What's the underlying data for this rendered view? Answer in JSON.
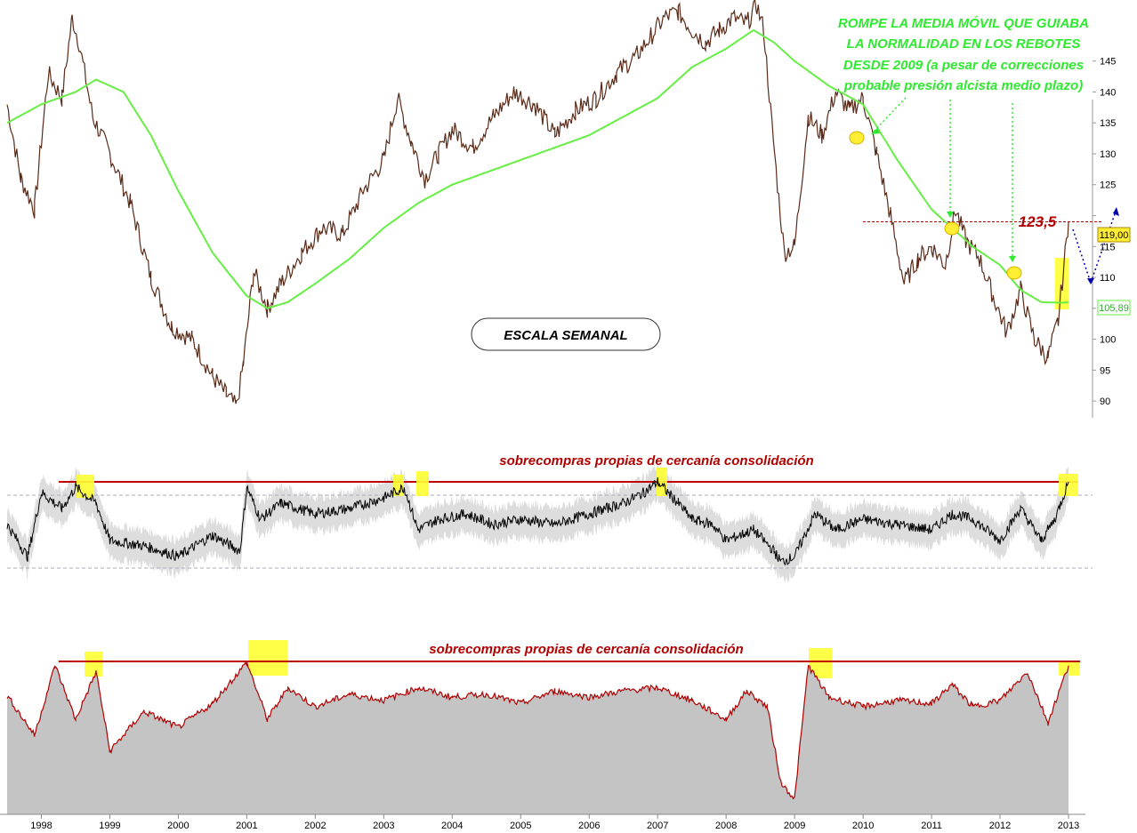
{
  "chart_data": [
    {
      "type": "line",
      "panel": "price",
      "label_box": "ESCALA SEMANAL",
      "annotation_lines": [
        "ROMPE LA MEDIA MÓVIL QUE GUIABA",
        "LA NORMALIDAD EN LOS REBOTES",
        "DESDE 2009 (a pesar de correcciones",
        "probable presión alcista medio plazo)"
      ],
      "level_label": "123,5",
      "last_price_label": "119,00",
      "ma_value_label": "105,89",
      "yticks": [
        90,
        95,
        100,
        105,
        110,
        115,
        120,
        125,
        130,
        135,
        140,
        145
      ],
      "ytick_labels": [
        "90",
        "95",
        "100",
        "",
        "110",
        "115",
        "",
        "125",
        "130",
        "135",
        "140",
        "145"
      ],
      "ylim": [
        88,
        152
      ],
      "resistance_level": 119,
      "series": [
        {
          "color": "#333333",
          "x": [
            1997.5,
            1997.7,
            1997.9,
            1998.1,
            1998.3,
            1998.45,
            1998.55,
            1998.75,
            1999.0,
            1999.3,
            1999.6,
            1999.9,
            2000.2,
            2000.5,
            2000.7,
            2000.85,
            2000.95,
            2001.1,
            2001.3,
            2001.5,
            2001.8,
            2002.1,
            2002.4,
            2002.7,
            2003.0,
            2003.2,
            2003.4,
            2003.6,
            2003.8,
            2004.0,
            2004.3,
            2004.6,
            2004.9,
            2005.2,
            2005.5,
            2005.8,
            2006.1,
            2006.4,
            2006.7,
            2006.9,
            2007.1,
            2007.3,
            2007.5,
            2007.7,
            2007.9,
            2008.1,
            2008.3,
            2008.45,
            2008.55,
            2008.65,
            2008.75,
            2008.85,
            2009.0,
            2009.2,
            2009.4,
            2009.6,
            2009.8,
            2010.0,
            2010.2,
            2010.4,
            2010.6,
            2010.8,
            2011.0,
            2011.2,
            2011.35,
            2011.5,
            2011.7,
            2011.9,
            2012.1,
            2012.3,
            2012.5,
            2012.7,
            2012.85,
            2013.0
          ],
          "values": [
            138,
            126,
            121,
            143,
            139,
            152,
            148,
            136,
            130,
            122,
            110,
            102,
            100,
            94,
            91,
            89,
            96,
            111,
            105,
            109,
            114,
            118,
            117,
            124,
            129,
            139,
            132,
            126,
            130,
            134,
            131,
            136,
            140,
            138,
            133,
            137,
            139,
            143,
            146,
            149,
            152,
            153,
            150,
            148,
            150,
            152,
            151,
            154,
            150,
            137,
            125,
            114,
            115,
            136,
            133,
            140,
            137,
            139,
            130,
            120,
            109,
            113,
            115,
            112,
            121,
            116,
            113,
            107,
            101,
            108,
            100,
            97,
            103,
            119
          ]
        },
        {
          "color": "#66ee44",
          "x": [
            1997.5,
            1998.0,
            1998.5,
            1998.8,
            1999.2,
            1999.6,
            2000.0,
            2000.5,
            2001.0,
            2001.3,
            2001.6,
            2002.0,
            2002.5,
            2003.0,
            2003.5,
            2004.0,
            2004.5,
            2005.0,
            2005.5,
            2006.0,
            2006.5,
            2007.0,
            2007.5,
            2008.0,
            2008.4,
            2008.7,
            2009.0,
            2009.5,
            2010.0,
            2010.5,
            2011.0,
            2011.3,
            2011.6,
            2012.0,
            2012.3,
            2012.6,
            2012.9,
            2013.0
          ],
          "values": [
            135,
            138,
            140,
            142,
            140,
            133,
            124,
            114,
            107,
            105,
            106,
            109,
            113,
            118,
            122,
            125,
            127,
            129,
            131,
            133,
            136,
            139,
            144,
            147,
            150,
            148,
            145,
            141,
            138,
            129,
            121,
            118,
            115,
            112,
            108,
            106,
            105.9,
            106
          ]
        }
      ]
    },
    {
      "type": "line",
      "panel": "oscillator-1",
      "title": "sobrecompras propias de cercanía consolidación",
      "ylim": [
        0,
        100
      ],
      "overbought_level": 88,
      "series": [
        {
          "color": "#000000",
          "x": [
            1997.5,
            1997.8,
            1998.0,
            1998.3,
            1998.5,
            1998.8,
            1999.0,
            1999.5,
            2000.0,
            2000.5,
            2000.9,
            2001.0,
            2001.2,
            2001.5,
            2002.0,
            2002.5,
            2003.0,
            2003.3,
            2003.5,
            2003.8,
            2004.2,
            2004.6,
            2005.0,
            2005.5,
            2006.0,
            2006.5,
            2006.8,
            2007.0,
            2007.3,
            2007.5,
            2007.8,
            2008.0,
            2008.4,
            2008.7,
            2008.8,
            2009.0,
            2009.3,
            2009.6,
            2010.0,
            2010.5,
            2011.0,
            2011.3,
            2011.6,
            2012.0,
            2012.3,
            2012.6,
            2012.8,
            2013.0
          ],
          "values": [
            50,
            20,
            80,
            65,
            85,
            70,
            35,
            30,
            20,
            40,
            25,
            85,
            55,
            70,
            60,
            65,
            75,
            85,
            45,
            55,
            60,
            50,
            55,
            50,
            60,
            70,
            80,
            90,
            70,
            55,
            50,
            35,
            45,
            25,
            15,
            20,
            60,
            45,
            55,
            50,
            45,
            60,
            55,
            35,
            65,
            35,
            55,
            90
          ]
        }
      ]
    },
    {
      "type": "area",
      "panel": "oscillator-2",
      "title": "sobrecompras propias de cercanía consolidación",
      "ylim": [
        0,
        100
      ],
      "overbought_level": 94,
      "series": [
        {
          "color": "#b00000",
          "x": [
            1997.5,
            1997.9,
            1998.2,
            1998.5,
            1998.8,
            1999.0,
            1999.5,
            2000.0,
            2000.5,
            2001.0,
            2001.3,
            2001.6,
            2002.0,
            2002.5,
            2003.0,
            2003.5,
            2004.0,
            2004.5,
            2005.0,
            2005.5,
            2006.0,
            2006.5,
            2007.0,
            2007.5,
            2008.0,
            2008.3,
            2008.6,
            2008.8,
            2009.0,
            2009.2,
            2009.5,
            2010.0,
            2010.5,
            2011.0,
            2011.3,
            2011.6,
            2012.0,
            2012.4,
            2012.7,
            2013.0
          ],
          "values": [
            75,
            50,
            94,
            60,
            90,
            40,
            65,
            55,
            70,
            96,
            60,
            80,
            68,
            76,
            72,
            80,
            74,
            76,
            70,
            78,
            74,
            78,
            80,
            72,
            60,
            78,
            68,
            20,
            10,
            94,
            74,
            68,
            72,
            70,
            82,
            68,
            72,
            90,
            58,
            94
          ]
        }
      ]
    }
  ],
  "x_axis": {
    "tick_labels": [
      "1998",
      "1999",
      "2000",
      "2001",
      "2002",
      "2003",
      "2004",
      "2005",
      "2006",
      "2007",
      "2008",
      "2009",
      "2010",
      "2011",
      "2012",
      "2013"
    ]
  }
}
